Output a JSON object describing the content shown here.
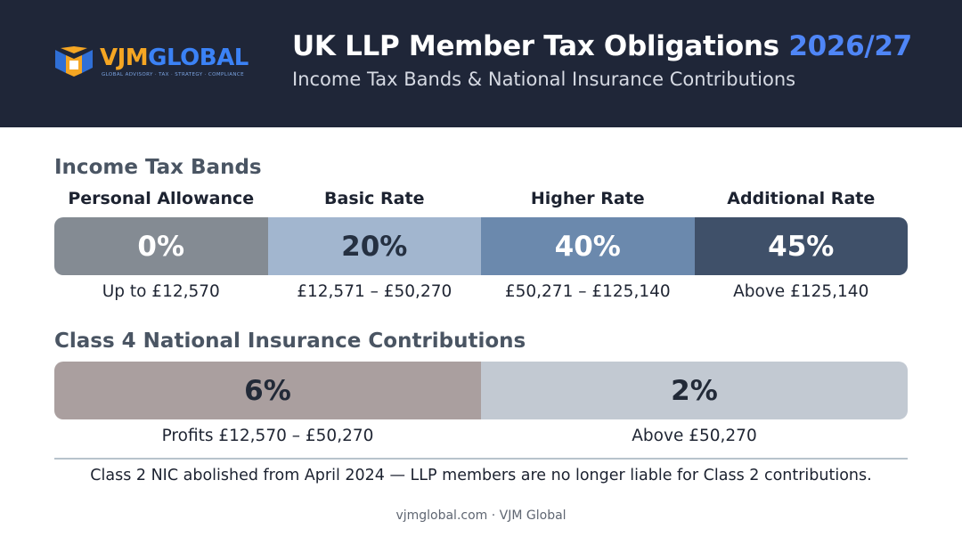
{
  "header": {
    "logo": {
      "brand_part1": "VJM",
      "brand_part2": "GLOBAL",
      "tagline": "GLOBAL ADVISORY · TAX · STRATEGY · COMPLIANCE"
    },
    "title_main": "UK LLP Member Tax Obligations",
    "title_year": "2026/27",
    "subtitle": "Income Tax Bands & National Insurance Contributions"
  },
  "income_tax": {
    "section_title": "Income Tax Bands",
    "bands": [
      {
        "name": "Personal Allowance",
        "rate": "0%",
        "range": "Up to £12,570",
        "color": "#848b93"
      },
      {
        "name": "Basic Rate",
        "rate": "20%",
        "range": "£12,571 – £50,270",
        "color": "#a2b6cf"
      },
      {
        "name": "Higher Rate",
        "rate": "40%",
        "range": "£50,271 – £125,140",
        "color": "#6b89ad"
      },
      {
        "name": "Additional Rate",
        "rate": "45%",
        "range": "Above £125,140",
        "color": "#3f5069"
      }
    ]
  },
  "national_insurance": {
    "section_title": "Class 4 National Insurance Contributions",
    "bands": [
      {
        "rate": "6%",
        "range": "Profits £12,570 – £50,270",
        "color": "#aa9f9f"
      },
      {
        "rate": "2%",
        "range": "Above £50,270",
        "color": "#c2c9d2"
      }
    ]
  },
  "note": "Class 2 NIC abolished from April 2024 — LLP members are no longer liable for Class 2 contributions.",
  "footer": "vjmglobal.com · VJM Global",
  "colors": {
    "header_bg": "#1f2638",
    "accent_blue": "#4f86f7",
    "logo_orange": "#f5a623"
  }
}
